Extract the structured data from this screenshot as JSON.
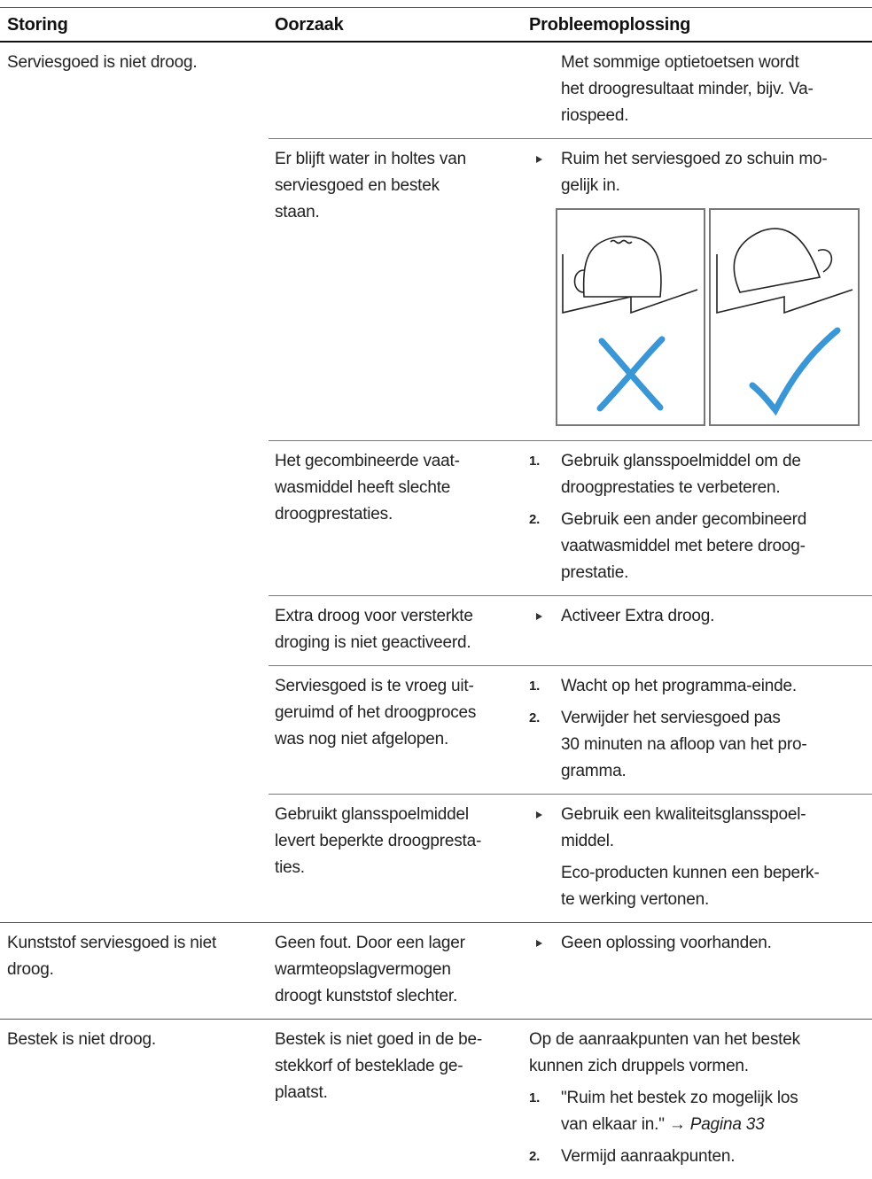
{
  "header": [
    "Storing",
    "Oorzaak",
    "Probleemoplossing"
  ],
  "rows": [
    {
      "storing": [
        "Serviesgoed is niet droog."
      ],
      "causes": [
        {
          "oorzaak": [],
          "oplossing": [
            {
              "type": "note",
              "lines": [
                "Met sommige optietoetsen wordt",
                "het droogresultaat minder, bijv. Va-",
                "riospeed."
              ]
            }
          ]
        },
        {
          "oorzaak": [
            "Er blijft water in holtes van",
            "serviesgoed en bestek",
            "staan."
          ],
          "oplossing": [
            {
              "type": "bullet",
              "lines": [
                "Ruim het serviesgoed zo schuin mo-",
                "gelijk in."
              ]
            },
            {
              "type": "figure"
            }
          ]
        },
        {
          "oorzaak": [
            "Het gecombineerde vaat-",
            "wasmiddel heeft slechte",
            "droogprestaties."
          ],
          "oplossing": [
            {
              "type": "step",
              "marker": "1.",
              "lines": [
                "Gebruik glansspoelmiddel om de",
                "droogprestaties te verbeteren."
              ]
            },
            {
              "type": "step",
              "marker": "2.",
              "lines": [
                "Gebruik een ander gecombineerd",
                "vaatwasmiddel met betere droog-",
                "prestatie."
              ]
            }
          ]
        },
        {
          "oorzaak": [
            "Extra droog voor versterkte",
            "droging is niet geactiveerd."
          ],
          "oplossing": [
            {
              "type": "bullet",
              "lines": [
                "Activeer Extra droog."
              ]
            }
          ]
        },
        {
          "oorzaak": [
            "Serviesgoed is te vroeg uit-",
            "geruimd of het droogproces",
            "was nog niet afgelopen."
          ],
          "oplossing": [
            {
              "type": "step",
              "marker": "1.",
              "lines": [
                "Wacht op het programma-einde."
              ]
            },
            {
              "type": "step",
              "marker": "2.",
              "lines": [
                "Verwijder het serviesgoed pas",
                "30 minuten na afloop van het pro-",
                "gramma."
              ]
            }
          ]
        },
        {
          "oorzaak": [
            "Gebruikt glansspoelmiddel",
            "levert beperkte droogpresta-",
            "ties."
          ],
          "oplossing": [
            {
              "type": "bullet",
              "lines": [
                "Gebruik een kwaliteitsglansspoel-",
                "middel."
              ]
            },
            {
              "type": "note",
              "lines": [
                "Eco-producten kunnen een beperk-",
                "te werking vertonen."
              ]
            }
          ]
        }
      ]
    },
    {
      "storing": [
        "Kunststof serviesgoed is niet",
        "droog."
      ],
      "causes": [
        {
          "oorzaak": [
            "Geen fout. Door een lager",
            "warmteopslagvermogen",
            "droogt kunststof slechter."
          ],
          "oplossing": [
            {
              "type": "bullet",
              "lines": [
                "Geen oplossing voorhanden."
              ]
            }
          ]
        }
      ]
    },
    {
      "storing": [
        "Bestek is niet droog."
      ],
      "causes": [
        {
          "oorzaak": [
            "Bestek is niet goed in de be-",
            "stekkorf of besteklade ge-",
            "plaatst."
          ],
          "oplossing": [
            {
              "type": "para",
              "lines": [
                "Op de aanraakpunten van het bestek",
                "kunnen zich druppels vormen."
              ]
            },
            {
              "type": "step",
              "marker": "1.",
              "lines": [
                "\"Ruim het bestek zo mogelijk los",
                "van elkaar in.\" → "
              ],
              "link": "Pagina 33"
            },
            {
              "type": "step",
              "marker": "2.",
              "lines": [
                "Vermijd aanraakpunten."
              ]
            }
          ]
        }
      ]
    }
  ]
}
